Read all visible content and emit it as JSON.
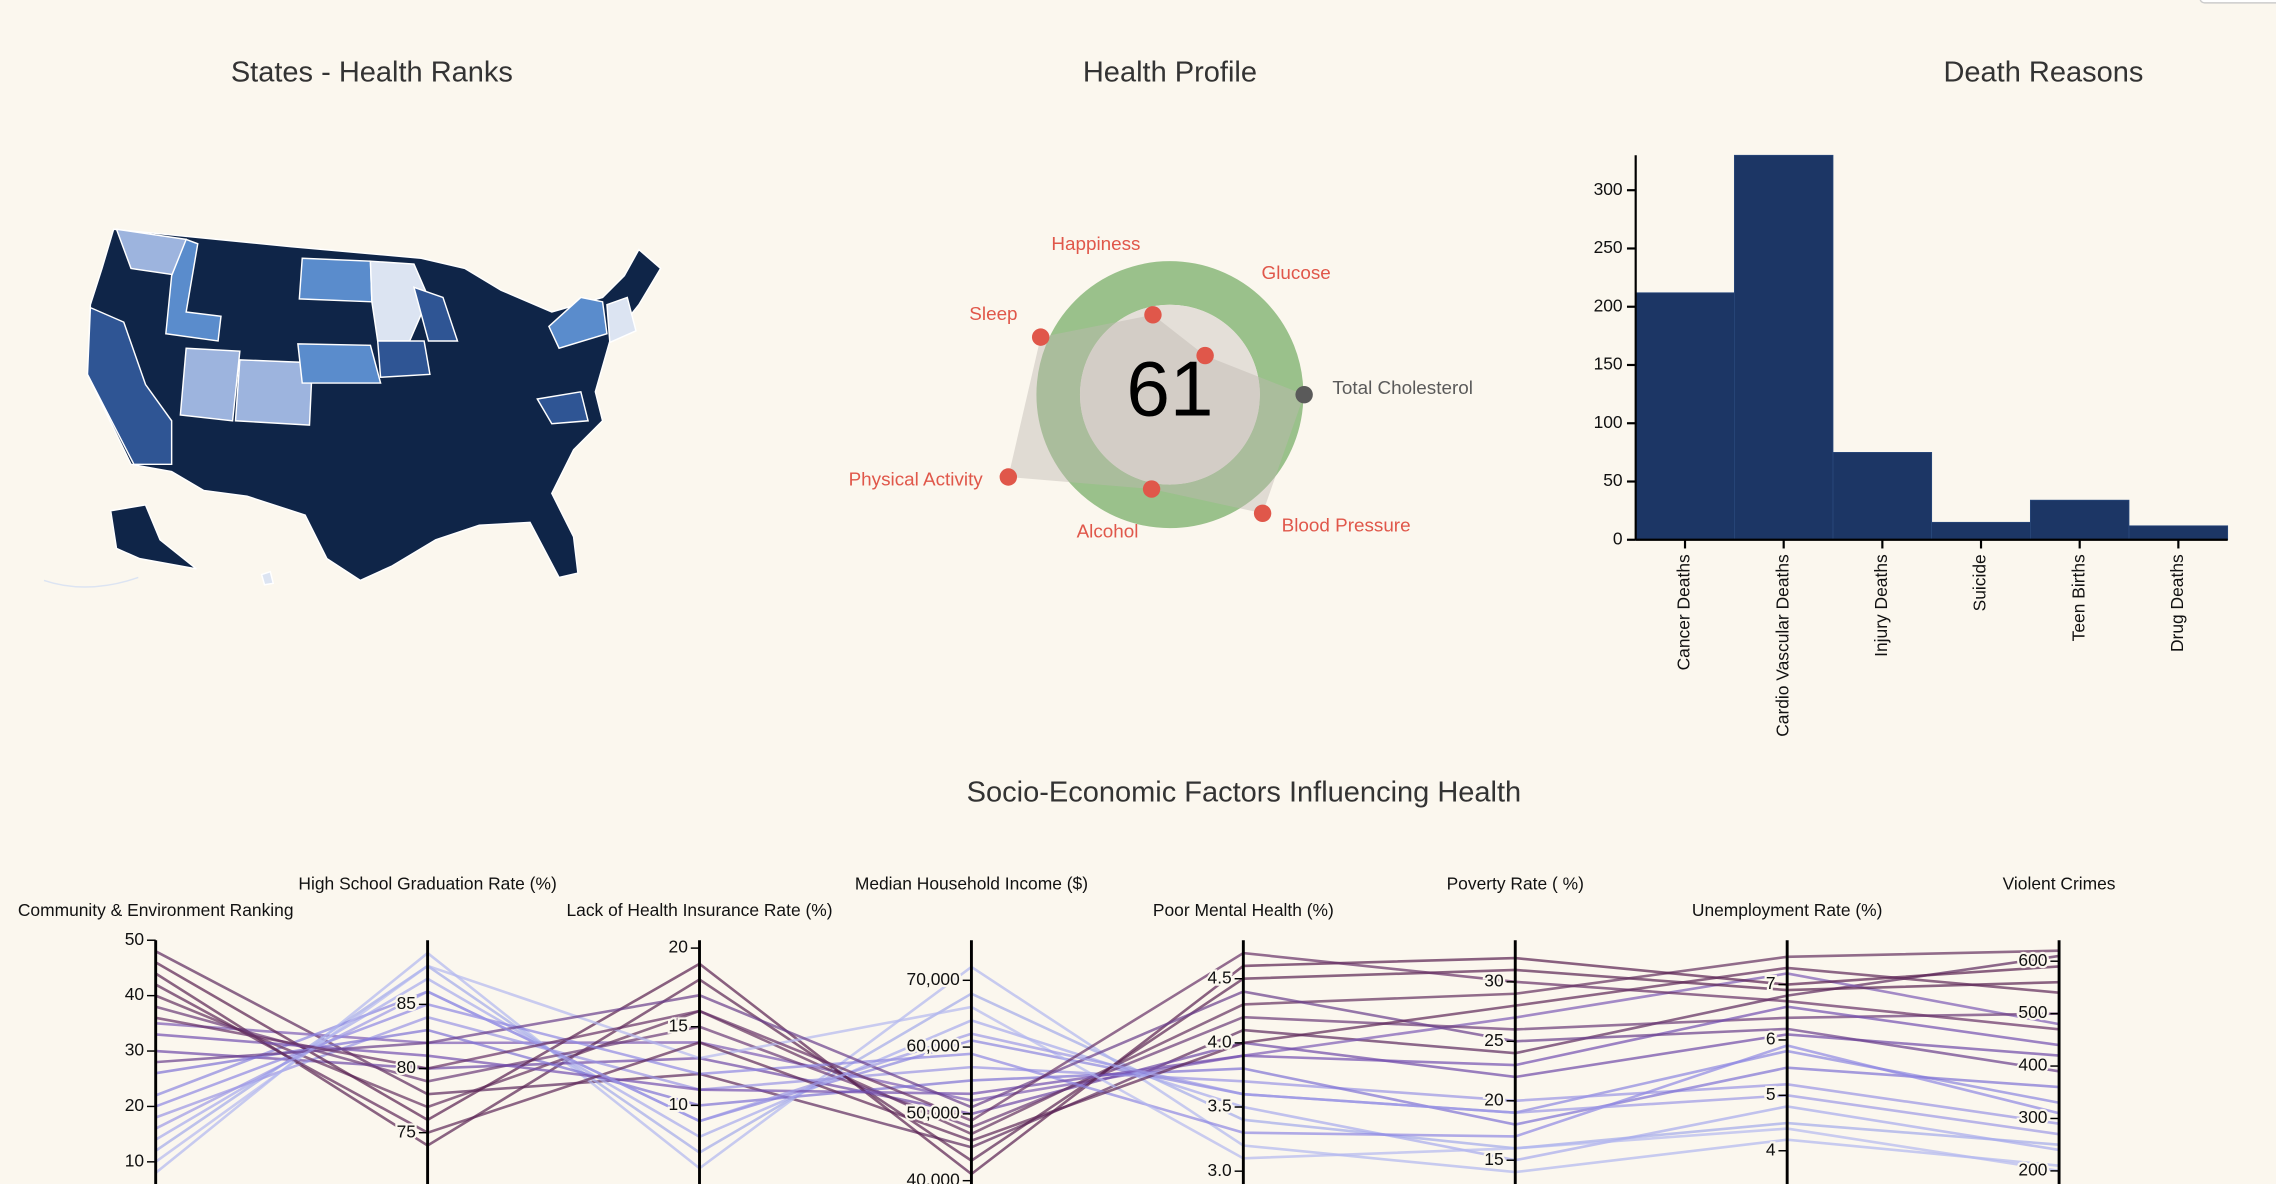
{
  "chart_data": [
    {
      "type": "map",
      "title": "States - Health Ranks"
    },
    {
      "type": "radar",
      "title": "Health Profile",
      "score": 61,
      "rlim": [
        0,
        100
      ],
      "axes": [
        {
          "label": "Happiness",
          "value": 45,
          "color": "#e0574a"
        },
        {
          "label": "Glucose",
          "value": 29,
          "color": "#e0574a"
        },
        {
          "label": "Total Cholesterol",
          "value": 74,
          "color": "#5a5a5a"
        },
        {
          "label": "Blood Pressure",
          "value": 83,
          "color": "#e0574a"
        },
        {
          "label": "Alcohol",
          "value": 53,
          "color": "#e0574a"
        },
        {
          "label": "Physical Activity",
          "value": 100,
          "color": "#e0574a"
        },
        {
          "label": "Sleep",
          "value": 78,
          "color": "#e0574a"
        }
      ]
    },
    {
      "type": "bar",
      "title": "Death Reasons",
      "categories": [
        "Cancer Deaths",
        "Cardio Vascular Deaths",
        "Injury Deaths",
        "Suicide",
        "Teen Births",
        "Drug Deaths"
      ],
      "values": [
        212,
        330,
        75,
        15,
        34,
        12
      ],
      "color": "#1c3665",
      "ylim": [
        0,
        330
      ],
      "yticks": [
        0,
        50,
        100,
        150,
        200,
        250,
        300
      ]
    },
    {
      "type": "parallel",
      "title": "Socio-Economic Factors Influencing Health",
      "dimensions": [
        {
          "label": "Community & Environment Ranking",
          "ylim": [
            6,
            50
          ],
          "yticks": [
            10,
            20,
            30,
            40,
            50
          ]
        },
        {
          "label": "High School Graduation Rate (%)",
          "ylim": [
            71,
            90
          ],
          "yticks": [
            75,
            80,
            85
          ]
        },
        {
          "label": "Lack of Health Insurance Rate (%)",
          "ylim": [
            5,
            20.5
          ],
          "yticks": [
            10,
            15,
            20
          ]
        },
        {
          "label": "Median Household Income ($)",
          "ylim": [
            39500,
            76000
          ],
          "yticks": [
            {
              "value": 40000,
              "label": "40,000"
            },
            {
              "value": 50000,
              "label": "50,000"
            },
            {
              "value": 60000,
              "label": "60,000"
            },
            {
              "value": 70000,
              "label": "70,000"
            }
          ]
        },
        {
          "label": "Poor Mental Health (%)",
          "ylim": [
            2.9,
            4.8
          ],
          "yticks": [
            {
              "value": 3,
              "label": "3.0"
            },
            3.5,
            {
              "value": 4,
              "label": "4.0"
            },
            4.5
          ]
        },
        {
          "label": "Poverty Rate ( %)",
          "ylim": [
            13,
            33.5
          ],
          "yticks": [
            15,
            20,
            25,
            30
          ]
        },
        {
          "label": "Unemployment Rate (%)",
          "ylim": [
            3.4,
            7.8
          ],
          "yticks": [
            4,
            5,
            6,
            7
          ]
        },
        {
          "label": "Violent Crimes",
          "ylim": [
            175,
            640
          ],
          "yticks": [
            200,
            300,
            400,
            500,
            600
          ]
        }
      ],
      "lines": [
        {
          "color": "#5c2a5e",
          "values": [
            48,
            78,
            12,
            45000,
            4.1,
            24,
            6.8,
            610
          ]
        },
        {
          "color": "#a3a9ea",
          "values": [
            12,
            88,
            7,
            68000,
            3.4,
            16,
            4.5,
            250
          ]
        },
        {
          "color": "#7d5bb5",
          "values": [
            35,
            82,
            14,
            52000,
            3.9,
            27,
            7.2,
            480
          ]
        },
        {
          "color": "#8b86e0",
          "values": [
            22,
            86,
            9,
            61000,
            3.6,
            19,
            5.8,
            330
          ]
        },
        {
          "color": "#5a2352",
          "values": [
            44,
            74,
            18,
            43000,
            4.5,
            31,
            6.9,
            560
          ]
        },
        {
          "color": "#b0b6ef",
          "values": [
            8,
            89,
            6,
            72000,
            3.2,
            14,
            4.2,
            210
          ]
        },
        {
          "color": "#6f4aa8",
          "values": [
            30,
            80,
            13,
            50000,
            4.0,
            22,
            6.1,
            420
          ]
        },
        {
          "color": "#9a94e4",
          "values": [
            18,
            84,
            11,
            57000,
            3.7,
            20,
            5.2,
            290
          ]
        },
        {
          "color": "#64305f",
          "values": [
            40,
            77,
            16,
            47000,
            4.3,
            29,
            7.5,
            620
          ]
        },
        {
          "color": "#7f72d4",
          "values": [
            26,
            83,
            10,
            55000,
            3.8,
            18,
            5.5,
            360
          ]
        },
        {
          "color": "#a6aaec",
          "values": [
            14,
            87,
            8,
            64000,
            3.5,
            15,
            4.8,
            240
          ]
        },
        {
          "color": "#6b3a78",
          "values": [
            38,
            79,
            15,
            48000,
            4.2,
            26,
            6.4,
            500
          ]
        },
        {
          "color": "#582050",
          "values": [
            46,
            76,
            19,
            41000,
            4.6,
            32,
            7.0,
            590
          ]
        },
        {
          "color": "#8e88e2",
          "values": [
            20,
            85,
            12,
            59000,
            3.3,
            17,
            5.9,
            310
          ]
        },
        {
          "color": "#7350b0",
          "values": [
            33,
            81,
            11,
            53000,
            3.9,
            23,
            6.6,
            440
          ]
        },
        {
          "color": "#b3b8f0",
          "values": [
            10,
            88,
            13,
            66000,
            3.1,
            16,
            4.4,
            200
          ]
        },
        {
          "color": "#6a3f8c",
          "values": [
            28,
            82,
            17,
            51000,
            4.4,
            25,
            6.2,
            390
          ]
        },
        {
          "color": "#5e2858",
          "values": [
            42,
            75,
            14,
            46000,
            4.0,
            28,
            7.3,
            540
          ]
        },
        {
          "color": "#9c98e6",
          "values": [
            16,
            86,
            9,
            62000,
            3.6,
            19,
            5.0,
            270
          ]
        },
        {
          "color": "#663066",
          "values": [
            36,
            80,
            16,
            49000,
            4.7,
            30,
            6.7,
            470
          ]
        }
      ]
    }
  ]
}
